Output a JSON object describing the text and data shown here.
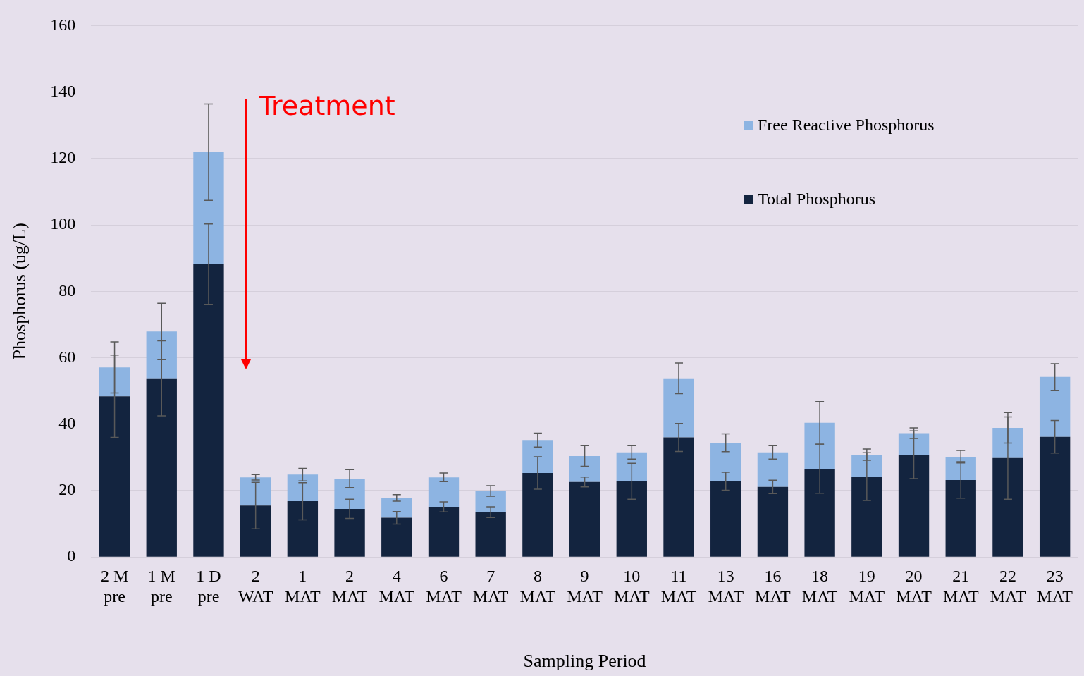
{
  "chart_data": {
    "type": "bar",
    "stacked": true,
    "xlabel": "Sampling Period",
    "ylabel": "Phosphorus (ug/L)",
    "categories": [
      "2 M\npre",
      "1 M\npre",
      "1 D\npre",
      "2\nWAT",
      "1\nMAT",
      "2\nMAT",
      "4\nMAT",
      "6\nMAT",
      "7\nMAT",
      "8\nMAT",
      "9\nMAT",
      "10\nMAT",
      "11\nMAT",
      "13\nMAT",
      "16\nMAT",
      "18\nMAT",
      "19\nMAT",
      "20\nMAT",
      "21\nMAT",
      "22\nMAT",
      "23\nMAT"
    ],
    "series": [
      {
        "name": "Total Phosphorus",
        "color": "#13243f",
        "values": [
          48.4,
          53.8,
          88.2,
          15.5,
          16.8,
          14.5,
          11.8,
          15.1,
          13.5,
          25.3,
          22.6,
          22.8,
          36.0,
          22.8,
          21.1,
          26.5,
          24.2,
          30.8,
          23.2,
          29.8,
          36.2
        ],
        "errors": [
          12.4,
          11.3,
          12.1,
          7.0,
          5.6,
          2.9,
          1.9,
          1.5,
          1.6,
          4.9,
          1.5,
          5.4,
          4.2,
          2.7,
          2.0,
          7.3,
          7.2,
          7.2,
          5.5,
          12.4,
          4.9
        ]
      },
      {
        "name": "Free Reactive Phosphorus",
        "color": "#8db4e2",
        "values": [
          8.7,
          14.1,
          33.7,
          8.5,
          8.0,
          9.1,
          6.0,
          8.9,
          6.4,
          9.9,
          7.8,
          8.7,
          17.8,
          11.6,
          10.4,
          13.9,
          6.6,
          6.5,
          7.0,
          9.1,
          18.0
        ],
        "errors": [
          7.7,
          8.5,
          14.5,
          0.8,
          1.9,
          2.7,
          1.0,
          1.3,
          1.6,
          2.1,
          3.1,
          2.0,
          4.6,
          2.7,
          2.0,
          6.4,
          1.7,
          1.6,
          1.9,
          4.6,
          4.0
        ]
      }
    ],
    "ylim": [
      0,
      160
    ],
    "yticks": [
      0,
      20,
      40,
      60,
      80,
      100,
      120,
      140,
      160
    ],
    "grid": "y",
    "legend": "top right",
    "annotations": [
      "Treatment"
    ]
  }
}
